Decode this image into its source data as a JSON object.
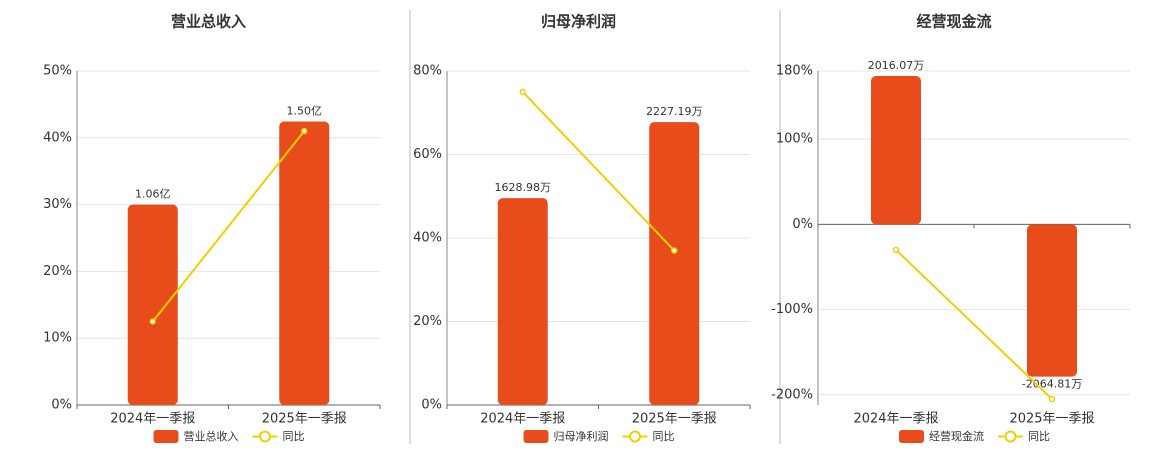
{
  "chart_data": [
    {
      "type": "bar-line",
      "title": "营业总收入",
      "categories": [
        "2024年一季报",
        "2025年一季报"
      ],
      "ylim": [
        0,
        50
      ],
      "yticks": [
        {
          "value": 0,
          "label": "0%"
        },
        {
          "value": 10,
          "label": "10%"
        },
        {
          "value": 20,
          "label": "20%"
        },
        {
          "value": 30,
          "label": "30%"
        },
        {
          "value": 40,
          "label": "40%"
        },
        {
          "value": 50,
          "label": "50%"
        }
      ],
      "y2lim": [
        0,
        1.767
      ],
      "series": [
        {
          "name": "营业总收入",
          "kind": "bar",
          "axis": "y2",
          "color": "#e84c1a",
          "values": [
            1.06,
            1.5
          ],
          "value_labels": [
            "1.06亿",
            "1.50亿"
          ]
        },
        {
          "name": "同比",
          "kind": "line",
          "color": "#f0d000",
          "values": [
            12.5,
            41
          ]
        }
      ]
    },
    {
      "type": "bar-line",
      "title": "归母净利润",
      "categories": [
        "2024年一季报",
        "2025年一季报"
      ],
      "ylim": [
        0,
        80
      ],
      "yticks": [
        {
          "value": 0,
          "label": "0%"
        },
        {
          "value": 20,
          "label": "20%"
        },
        {
          "value": 40,
          "label": "40%"
        },
        {
          "value": 60,
          "label": "60%"
        },
        {
          "value": 80,
          "label": "80%"
        }
      ],
      "y2lim": [
        0,
        2630
      ],
      "series": [
        {
          "name": "归母净利润",
          "kind": "bar",
          "axis": "y2",
          "color": "#e84c1a",
          "values": [
            1628.98,
            2227.19
          ],
          "value_labels": [
            "1628.98万",
            "2227.19万"
          ]
        },
        {
          "name": "同比",
          "kind": "line",
          "color": "#f0d000",
          "values": [
            75,
            37
          ]
        }
      ]
    },
    {
      "type": "bar-line",
      "title": "经营现金流",
      "categories": [
        "2024年一季报",
        "2025年一季报"
      ],
      "ylim": [
        -212,
        180
      ],
      "yticks": [
        {
          "value": -200,
          "label": "-200%"
        },
        {
          "value": -100,
          "label": "-100%"
        },
        {
          "value": 0,
          "label": "0%"
        },
        {
          "value": 100,
          "label": "100%"
        },
        {
          "value": 180,
          "label": "180%"
        }
      ],
      "y2lim": [
        -2450,
        2084
      ],
      "series": [
        {
          "name": "经营现金流",
          "kind": "bar",
          "axis": "y2",
          "color": "#e84c1a",
          "values": [
            2016.07,
            -2064.81
          ],
          "value_labels": [
            "2016.07万",
            "-2064.81万"
          ]
        },
        {
          "name": "同比",
          "kind": "line",
          "color": "#f0d000",
          "values": [
            -30,
            -205
          ]
        }
      ]
    }
  ]
}
